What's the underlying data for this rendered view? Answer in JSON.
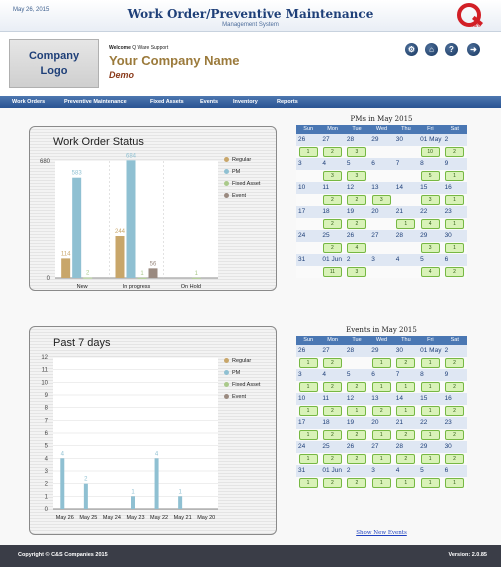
{
  "header": {
    "date": "May 26, 2015",
    "title": "Work Order/Preventive Maintenance",
    "subtitle": "Management System",
    "logo_text": "Q",
    "logo_tagline": "Ware"
  },
  "company": {
    "logo_line1": "Company",
    "logo_line2": "Logo",
    "welcome_label": "Welcome",
    "welcome_user": "Q Ware Support",
    "name": "Your Company Name",
    "sub": "Demo"
  },
  "toolbar": [
    {
      "name": "settings-icon",
      "glyph": "⚙"
    },
    {
      "name": "home-icon",
      "glyph": "⌂"
    },
    {
      "name": "help-icon",
      "glyph": "?"
    },
    {
      "name": "logout-icon",
      "glyph": "➜"
    }
  ],
  "nav": [
    "Work Orders",
    "Preventive Maintenance",
    "Fixed Assets",
    "Events",
    "Inventory",
    "Reports"
  ],
  "colors": {
    "regular": "#c8a66a",
    "pm": "#8fc0d2",
    "fixed_asset": "#a9c98a",
    "event": "#9a8a80"
  },
  "legend": [
    "Regular",
    "PM",
    "Fixed Asset",
    "Event"
  ],
  "chart_data": [
    {
      "type": "bar",
      "title": "Work Order Status",
      "categories": [
        "New",
        "In progress",
        "On Hold"
      ],
      "series": [
        {
          "name": "Regular",
          "values": [
            114,
            244,
            0
          ]
        },
        {
          "name": "PM",
          "values": [
            583,
            684,
            0
          ]
        },
        {
          "name": "Fixed Asset",
          "values": [
            2,
            1,
            1
          ]
        },
        {
          "name": "Event",
          "values": [
            0,
            56,
            0
          ]
        }
      ],
      "ylim": [
        0,
        680
      ],
      "yticks": [
        0,
        680
      ],
      "grid": false,
      "legend_position": "right"
    },
    {
      "type": "bar",
      "title": "Past 7 days",
      "categories": [
        "May 26",
        "May 25",
        "May 24",
        "May 23",
        "May 22",
        "May 21",
        "May 20"
      ],
      "series": [
        {
          "name": "Regular",
          "values": [
            0,
            0,
            0,
            0,
            0,
            0,
            0
          ]
        },
        {
          "name": "PM",
          "values": [
            4,
            2,
            0,
            1,
            4,
            1,
            0
          ]
        },
        {
          "name": "Fixed Asset",
          "values": [
            0,
            0,
            0,
            0,
            0,
            0,
            0
          ]
        },
        {
          "name": "Event",
          "values": [
            0,
            0,
            0,
            0,
            0,
            0,
            0
          ]
        }
      ],
      "ylim": [
        0,
        12
      ],
      "yticks": [
        0,
        1,
        2,
        3,
        4,
        5,
        6,
        7,
        8,
        9,
        10,
        11,
        12
      ],
      "grid": true,
      "legend_position": "right"
    }
  ],
  "calendars": [
    {
      "title": "PMs in May 2015",
      "weekdays": [
        "Sun",
        "Mon",
        "Tue",
        "Wed",
        "Thu",
        "Fri",
        "Sat"
      ],
      "weeks": [
        {
          "dates": [
            "26",
            "27",
            "28",
            "29",
            "30",
            "01 May",
            "2"
          ],
          "counts": [
            "1",
            "2",
            "3",
            "",
            "",
            "10",
            "2"
          ]
        },
        {
          "dates": [
            "3",
            "4",
            "5",
            "6",
            "7",
            "8",
            "9"
          ],
          "counts": [
            "",
            "3",
            "3",
            "",
            "",
            "5",
            "1"
          ]
        },
        {
          "dates": [
            "10",
            "11",
            "12",
            "13",
            "14",
            "15",
            "16"
          ],
          "counts": [
            "",
            "2",
            "2",
            "3",
            "",
            "3",
            "1"
          ]
        },
        {
          "dates": [
            "17",
            "18",
            "19",
            "20",
            "21",
            "22",
            "23"
          ],
          "counts": [
            "",
            "2",
            "2",
            "",
            "1",
            "4",
            "1"
          ]
        },
        {
          "dates": [
            "24",
            "25",
            "26",
            "27",
            "28",
            "29",
            "30"
          ],
          "counts": [
            "",
            "2",
            "4",
            "",
            "",
            "3",
            "1"
          ]
        },
        {
          "dates": [
            "31",
            "01 Jun",
            "2",
            "3",
            "4",
            "5",
            "6"
          ],
          "counts": [
            "",
            "11",
            "3",
            "",
            "",
            "4",
            "2"
          ]
        }
      ]
    },
    {
      "title": "Events in May 2015",
      "weekdays": [
        "Sun",
        "Mon",
        "Tue",
        "Wed",
        "Thu",
        "Fri",
        "Sat"
      ],
      "weeks": [
        {
          "dates": [
            "26",
            "27",
            "28",
            "29",
            "30",
            "01 May",
            "2"
          ],
          "counts": [
            "1",
            "2",
            "",
            "1",
            "2",
            "1",
            "2"
          ]
        },
        {
          "dates": [
            "3",
            "4",
            "5",
            "6",
            "7",
            "8",
            "9"
          ],
          "counts": [
            "1",
            "2",
            "2",
            "1",
            "1",
            "1",
            "2"
          ]
        },
        {
          "dates": [
            "10",
            "11",
            "12",
            "13",
            "14",
            "15",
            "16"
          ],
          "counts": [
            "1",
            "2",
            "1",
            "2",
            "1",
            "1",
            "2"
          ]
        },
        {
          "dates": [
            "17",
            "18",
            "19",
            "20",
            "21",
            "22",
            "23"
          ],
          "counts": [
            "1",
            "2",
            "2",
            "1",
            "2",
            "1",
            "2"
          ]
        },
        {
          "dates": [
            "24",
            "25",
            "26",
            "27",
            "28",
            "29",
            "30"
          ],
          "counts": [
            "1",
            "2",
            "2",
            "1",
            "2",
            "1",
            "2"
          ]
        },
        {
          "dates": [
            "31",
            "01 Jun",
            "2",
            "3",
            "4",
            "5",
            "6"
          ],
          "counts": [
            "1",
            "2",
            "2",
            "1",
            "1",
            "1",
            "1"
          ]
        }
      ],
      "link": "Show New Events"
    }
  ],
  "footer": {
    "copyright": "Copyright © C&S Companies 2015",
    "version": "Version: 2.0.85"
  }
}
